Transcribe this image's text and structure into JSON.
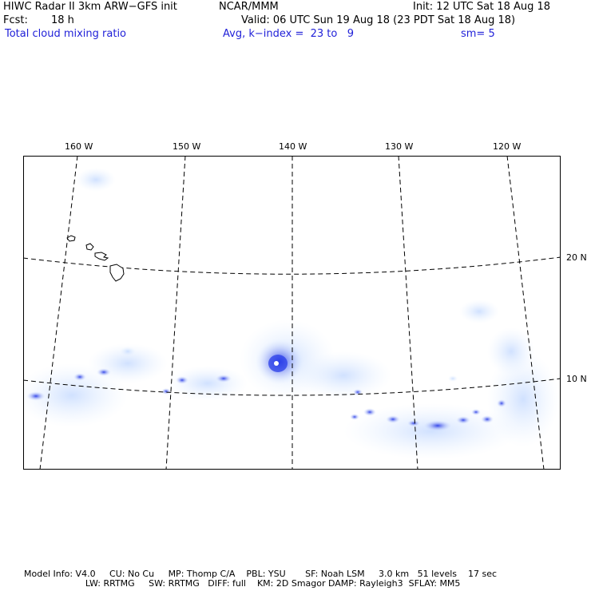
{
  "header": {
    "title_left": "HIWC Radar II 3km ARW−GFS init",
    "org": "NCAR/MMM",
    "init": "Init: 12 UTC Sat 18 Aug 18",
    "fcst_label": "Fcst:",
    "fcst_value": "18 h",
    "valid": "Valid: 06 UTC Sun 19 Aug 18 (23 PDT Sat 18 Aug 18)",
    "field": "Total cloud mixing ratio",
    "avg": "Avg, k−index =  23 to   9",
    "smooth": "sm= 5"
  },
  "map": {
    "lon_labels": [
      "160 W",
      "150 W",
      "140 W",
      "130 W",
      "120 W"
    ],
    "lat_labels": [
      "20 N",
      "10 N"
    ],
    "shading_color": "#2a3de8",
    "coast_color": "#000000",
    "grid_style": "dashed"
  },
  "footer": {
    "line1": "Model Info: V4.0     CU: No Cu     MP: Thomp C/A    PBL: YSU       SF: Noah LSM     3.0 km   51 levels    17 sec",
    "line2": "                      LW: RRTMG     SW: RRTMG   DIFF: full    KM: 2D Smagor DAMP: Rayleigh3  SFLAY: MM5"
  }
}
